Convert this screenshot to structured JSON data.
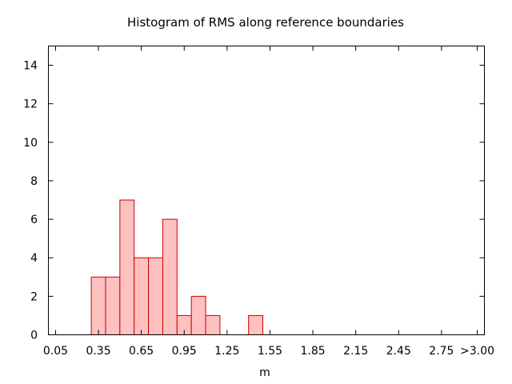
{
  "chart_data": {
    "type": "bar",
    "title": "Histogram of RMS along reference boundaries",
    "xlabel": "m",
    "ylabel": "",
    "xlim": [
      0.0,
      3.05
    ],
    "ylim": [
      0,
      15
    ],
    "x_ticks": [
      {
        "value": 0.05,
        "label": "0.05"
      },
      {
        "value": 0.35,
        "label": "0.35"
      },
      {
        "value": 0.65,
        "label": "0.65"
      },
      {
        "value": 0.95,
        "label": "0.95"
      },
      {
        "value": 1.25,
        "label": "1.25"
      },
      {
        "value": 1.55,
        "label": "1.55"
      },
      {
        "value": 1.85,
        "label": "1.85"
      },
      {
        "value": 2.15,
        "label": "2.15"
      },
      {
        "value": 2.45,
        "label": "2.45"
      },
      {
        "value": 2.75,
        "label": "2.75"
      },
      {
        "value": 3.0,
        "label": ">3.00"
      }
    ],
    "y_ticks": [
      {
        "value": 0,
        "label": "0"
      },
      {
        "value": 2,
        "label": "2"
      },
      {
        "value": 4,
        "label": "4"
      },
      {
        "value": 6,
        "label": "6"
      },
      {
        "value": 8,
        "label": "8"
      },
      {
        "value": 10,
        "label": "10"
      },
      {
        "value": 12,
        "label": "12"
      },
      {
        "value": 14,
        "label": "14"
      }
    ],
    "bin_width": 0.1,
    "bins": [
      {
        "x": 0.35,
        "count": 3
      },
      {
        "x": 0.45,
        "count": 3
      },
      {
        "x": 0.55,
        "count": 7
      },
      {
        "x": 0.65,
        "count": 4
      },
      {
        "x": 0.75,
        "count": 4
      },
      {
        "x": 0.85,
        "count": 6
      },
      {
        "x": 0.95,
        "count": 1
      },
      {
        "x": 1.05,
        "count": 2
      },
      {
        "x": 1.15,
        "count": 1
      },
      {
        "x": 1.45,
        "count": 1
      }
    ],
    "bar_fill": "#ffc0c0",
    "bar_stroke": "#cc0000",
    "grid": false,
    "legend": "none"
  }
}
